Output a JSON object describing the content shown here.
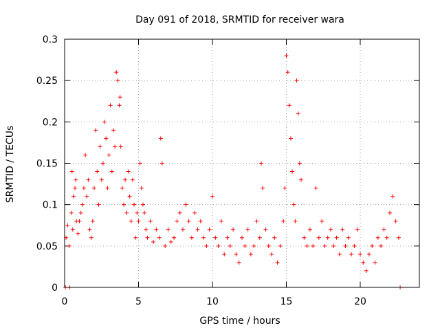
{
  "chart_data": {
    "type": "scatter",
    "title": "Day 091 of 2018, SRMTID for receiver wara",
    "xlabel": "GPS time / hours",
    "ylabel": "SRMTID / TECUs",
    "xlim": [
      0,
      24
    ],
    "ylim": [
      0,
      0.3
    ],
    "xticks": [
      0,
      5,
      10,
      15,
      20
    ],
    "xtick_labels": [
      "0",
      "5",
      "10",
      "15",
      "20"
    ],
    "yticks": [
      0,
      0.05,
      0.1,
      0.15,
      0.2,
      0.25,
      0.3
    ],
    "ytick_labels": [
      "0",
      "0.05",
      "0.1",
      "0.15",
      "0.2",
      "0.25",
      "0.3"
    ],
    "grid": true,
    "marker": "+",
    "color": "#ff0000",
    "series": [
      {
        "name": "SRMTID",
        "x": [
          0.1,
          0.2,
          0.3,
          0.45,
          0.5,
          0.55,
          0.6,
          0.7,
          0.75,
          0.8,
          0.9,
          1.0,
          1.1,
          1.2,
          1.3,
          1.4,
          1.5,
          1.6,
          1.7,
          1.8,
          1.9,
          2.0,
          2.1,
          2.2,
          2.3,
          2.4,
          2.5,
          2.6,
          2.7,
          2.8,
          2.9,
          3.0,
          3.1,
          3.2,
          3.3,
          3.4,
          3.5,
          3.6,
          3.7,
          3.75,
          3.8,
          3.9,
          4.0,
          4.1,
          4.2,
          4.3,
          4.4,
          4.5,
          4.6,
          4.7,
          4.8,
          4.9,
          5.0,
          5.1,
          5.2,
          5.3,
          5.4,
          5.5,
          5.6,
          5.8,
          6.0,
          6.2,
          6.4,
          6.5,
          6.6,
          6.8,
          7.0,
          7.2,
          7.4,
          7.6,
          7.8,
          8.0,
          8.2,
          8.4,
          8.6,
          8.8,
          9.0,
          9.2,
          9.4,
          9.6,
          9.8,
          10.0,
          10.2,
          10.4,
          10.6,
          10.8,
          11.0,
          11.2,
          11.4,
          11.6,
          11.8,
          12.0,
          12.2,
          12.4,
          12.6,
          12.8,
          13.0,
          13.2,
          13.3,
          13.4,
          13.6,
          13.8,
          14.0,
          14.2,
          14.4,
          14.6,
          14.8,
          14.9,
          15.0,
          15.1,
          15.2,
          15.3,
          15.4,
          15.5,
          15.6,
          15.7,
          15.8,
          15.9,
          16.0,
          16.2,
          16.4,
          16.6,
          16.8,
          17.0,
          17.2,
          17.4,
          17.6,
          17.8,
          18.0,
          18.2,
          18.4,
          18.6,
          18.8,
          19.0,
          19.2,
          19.4,
          19.6,
          19.8,
          20.0,
          20.2,
          20.4,
          20.6,
          20.8,
          21.0,
          21.2,
          21.4,
          21.6,
          21.8,
          22.0,
          22.2,
          22.4,
          22.6,
          0.05,
          0.35,
          22.7
        ],
        "y": [
          0.06,
          0.075,
          0.05,
          0.09,
          0.14,
          0.07,
          0.11,
          0.12,
          0.13,
          0.08,
          0.065,
          0.08,
          0.09,
          0.1,
          0.12,
          0.16,
          0.11,
          0.13,
          0.07,
          0.06,
          0.08,
          0.12,
          0.19,
          0.14,
          0.1,
          0.17,
          0.13,
          0.15,
          0.2,
          0.18,
          0.12,
          0.16,
          0.22,
          0.14,
          0.19,
          0.17,
          0.26,
          0.25,
          0.22,
          0.23,
          0.17,
          0.12,
          0.1,
          0.13,
          0.09,
          0.14,
          0.11,
          0.08,
          0.13,
          0.1,
          0.06,
          0.09,
          0.08,
          0.15,
          0.12,
          0.1,
          0.09,
          0.07,
          0.06,
          0.08,
          0.055,
          0.07,
          0.06,
          0.18,
          0.15,
          0.05,
          0.07,
          0.055,
          0.06,
          0.08,
          0.09,
          0.07,
          0.1,
          0.08,
          0.06,
          0.09,
          0.07,
          0.08,
          0.06,
          0.05,
          0.07,
          0.11,
          0.06,
          0.05,
          0.08,
          0.04,
          0.06,
          0.05,
          0.07,
          0.04,
          0.03,
          0.06,
          0.05,
          0.07,
          0.04,
          0.05,
          0.08,
          0.06,
          0.15,
          0.12,
          0.07,
          0.05,
          0.04,
          0.06,
          0.03,
          0.05,
          0.08,
          0.12,
          0.28,
          0.26,
          0.22,
          0.18,
          0.14,
          0.1,
          0.08,
          0.25,
          0.21,
          0.15,
          0.13,
          0.06,
          0.05,
          0.07,
          0.05,
          0.12,
          0.06,
          0.08,
          0.05,
          0.06,
          0.07,
          0.05,
          0.06,
          0.04,
          0.07,
          0.05,
          0.06,
          0.04,
          0.05,
          0.07,
          0.04,
          0.03,
          0.02,
          0.04,
          0.05,
          0.03,
          0.06,
          0.05,
          0.07,
          0.06,
          0.09,
          0.11,
          0.08,
          0.06,
          0.0,
          0.0,
          0.0
        ]
      }
    ]
  }
}
